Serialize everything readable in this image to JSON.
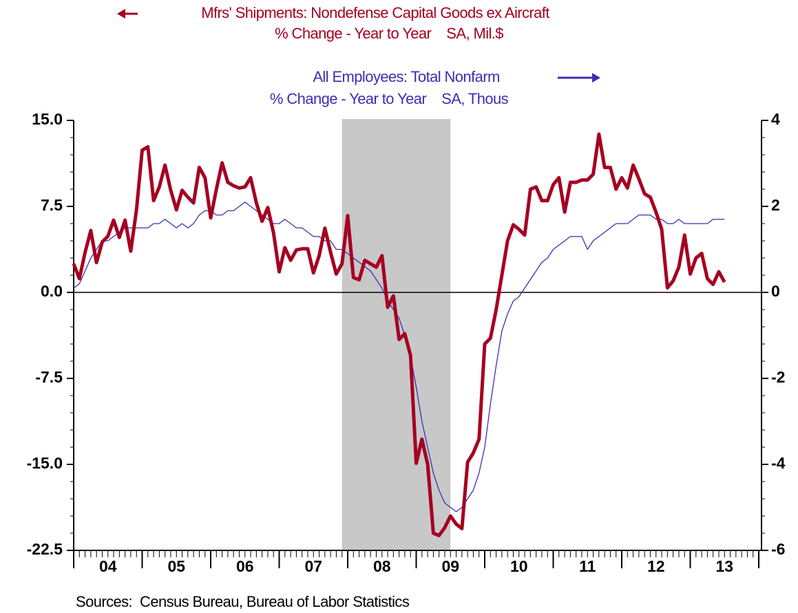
{
  "chart_data": {
    "type": "line",
    "source": "Sources:  Census Bureau, Bureau of Labor Statistics",
    "xlim": [
      2004,
      2014.04
    ],
    "xticks": [
      {
        "value": 2004.5,
        "label": "04"
      },
      {
        "value": 2005.5,
        "label": "05"
      },
      {
        "value": 2006.5,
        "label": "06"
      },
      {
        "value": 2007.5,
        "label": "07"
      },
      {
        "value": 2008.5,
        "label": "08"
      },
      {
        "value": 2009.5,
        "label": "09"
      },
      {
        "value": 2010.5,
        "label": "10"
      },
      {
        "value": 2011.5,
        "label": "11"
      },
      {
        "value": 2012.5,
        "label": "12"
      },
      {
        "value": 2013.5,
        "label": "13"
      }
    ],
    "ylim": [
      -22.5,
      15
    ],
    "yticks": [
      {
        "value": 15,
        "label": "15.0"
      },
      7.5,
      {
        "value": 0,
        "label": "0.0"
      },
      -7.5,
      {
        "value": -15,
        "label": "-15.0"
      },
      -22.5
    ],
    "y2lim": [
      -6,
      4
    ],
    "y2ticks": [
      4,
      2,
      0,
      -2,
      -4,
      -6
    ],
    "zero_line": true,
    "recession": [
      2007.917,
      2009.5
    ],
    "x": [
      2004,
      2004.083,
      2004.167,
      2004.25,
      2004.333,
      2004.417,
      2004.5,
      2004.583,
      2004.667,
      2004.75,
      2004.833,
      2004.917,
      2005,
      2005.083,
      2005.167,
      2005.25,
      2005.333,
      2005.417,
      2005.5,
      2005.583,
      2005.667,
      2005.75,
      2005.833,
      2005.917,
      2006,
      2006.083,
      2006.167,
      2006.25,
      2006.333,
      2006.417,
      2006.5,
      2006.583,
      2006.667,
      2006.75,
      2006.833,
      2006.917,
      2007,
      2007.083,
      2007.167,
      2007.25,
      2007.333,
      2007.417,
      2007.5,
      2007.583,
      2007.667,
      2007.75,
      2007.833,
      2007.917,
      2008,
      2008.083,
      2008.167,
      2008.25,
      2008.333,
      2008.417,
      2008.5,
      2008.583,
      2008.667,
      2008.75,
      2008.833,
      2008.917,
      2009,
      2009.083,
      2009.167,
      2009.25,
      2009.333,
      2009.417,
      2009.5,
      2009.583,
      2009.667,
      2009.75,
      2009.833,
      2009.917,
      2010,
      2010.083,
      2010.167,
      2010.25,
      2010.333,
      2010.417,
      2010.5,
      2010.583,
      2010.667,
      2010.75,
      2010.833,
      2010.917,
      2011,
      2011.083,
      2011.167,
      2011.25,
      2011.333,
      2011.417,
      2011.5,
      2011.583,
      2011.667,
      2011.75,
      2011.833,
      2011.917,
      2012,
      2012.083,
      2012.167,
      2012.25,
      2012.333,
      2012.417,
      2012.5,
      2012.583,
      2012.667,
      2012.75,
      2012.833,
      2012.917,
      2013,
      2013.083,
      2013.167,
      2013.25,
      2013.333,
      2013.417,
      2013.5
    ],
    "series": [
      {
        "name": "Mfrs' Shipments: Nondefense Capital Goods ex Aircraft",
        "units": "% Change - Year to Year    SA, Mil.$",
        "color": "#a50021",
        "axis": "y",
        "values": [
          2.5,
          1.2,
          3.5,
          5.4,
          2.6,
          4.4,
          4.9,
          6.3,
          4.8,
          6.3,
          3.6,
          7.2,
          12.4,
          12.7,
          8.0,
          9.2,
          11.1,
          8.9,
          7.2,
          8.9,
          8.3,
          7.8,
          10.9,
          10.0,
          6.5,
          9.0,
          11.3,
          9.6,
          9.3,
          9.1,
          9.2,
          10.0,
          7.8,
          6.2,
          7.4,
          5.2,
          1.8,
          3.9,
          2.8,
          3.7,
          3.8,
          3.8,
          1.7,
          3.2,
          5.6,
          3.5,
          1.6,
          2.5,
          6.7,
          1.3,
          1.1,
          2.8,
          2.5,
          2.2,
          3.2,
          -1.3,
          -0.3,
          -4.1,
          -3.6,
          -5.5,
          -14.9,
          -12.8,
          -15.0,
          -21.0,
          -21.2,
          -20.5,
          -19.5,
          -20.2,
          -20.6,
          -14.8,
          -14.0,
          -12.8,
          -4.5,
          -4.0,
          -1.5,
          1.5,
          4.5,
          5.9,
          5.5,
          5.0,
          9.0,
          9.2,
          8.0,
          8.0,
          9.4,
          10.0,
          7.0,
          9.6,
          9.6,
          9.8,
          9.8,
          10.3,
          13.8,
          10.9,
          10.9,
          9.0,
          10.0,
          9.1,
          11.1,
          9.9,
          8.6,
          8.3,
          7.0,
          5.5,
          0.4,
          1.0,
          2.2,
          5.0,
          1.6,
          3.0,
          3.4,
          1.2,
          0.7,
          1.8,
          0.9
        ]
      },
      {
        "name": "All Employees: Total Nonfarm",
        "units": "% Change - Year to Year    SA, Thous",
        "color": "#3a2fb5",
        "axis": "y2",
        "values": [
          0.1,
          0.2,
          0.5,
          0.8,
          1.0,
          1.2,
          1.2,
          1.3,
          1.4,
          1.5,
          1.5,
          1.5,
          1.5,
          1.5,
          1.6,
          1.6,
          1.7,
          1.6,
          1.5,
          1.6,
          1.5,
          1.6,
          1.8,
          1.9,
          1.9,
          1.8,
          1.8,
          1.9,
          1.9,
          2.0,
          2.1,
          2.0,
          1.9,
          1.8,
          1.7,
          1.6,
          1.6,
          1.7,
          1.6,
          1.5,
          1.5,
          1.4,
          1.3,
          1.3,
          1.2,
          1.2,
          1.0,
          1.0,
          0.9,
          0.8,
          0.7,
          0.6,
          0.5,
          0.3,
          0.1,
          -0.2,
          -0.4,
          -0.6,
          -1.0,
          -1.5,
          -2.2,
          -3.0,
          -3.6,
          -4.2,
          -4.6,
          -4.9,
          -5.0,
          -5.1,
          -5.0,
          -4.8,
          -4.6,
          -4.2,
          -3.6,
          -2.6,
          -1.7,
          -0.9,
          -0.5,
          -0.2,
          -0.1,
          0.1,
          0.3,
          0.5,
          0.7,
          0.8,
          1.0,
          1.1,
          1.2,
          1.3,
          1.3,
          1.3,
          1.0,
          1.2,
          1.3,
          1.4,
          1.5,
          1.6,
          1.6,
          1.6,
          1.7,
          1.8,
          1.8,
          1.8,
          1.7,
          1.7,
          1.6,
          1.6,
          1.7,
          1.6,
          1.6,
          1.6,
          1.6,
          1.6,
          1.7,
          1.7,
          1.7
        ]
      }
    ]
  }
}
